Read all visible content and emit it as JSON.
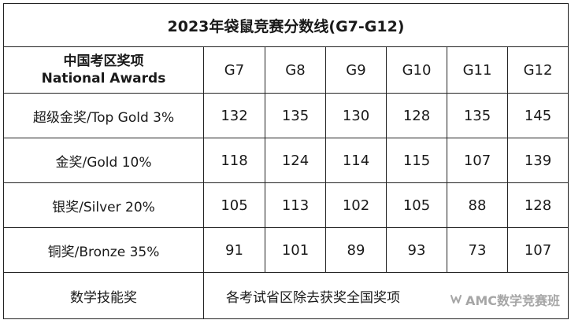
{
  "table": {
    "title": "2023年袋鼠竞赛分数线(G7-G12)",
    "header_label_line1": "中国考区奖项",
    "header_label_line2": "National Awards",
    "grades": [
      "G7",
      "G8",
      "G9",
      "G10",
      "G11",
      "G12"
    ],
    "rows": [
      {
        "award": "超级金奖/Top Gold 3%",
        "scores": [
          "132",
          "135",
          "130",
          "128",
          "135",
          "145"
        ]
      },
      {
        "award": "金奖/Gold 10%",
        "scores": [
          "118",
          "124",
          "114",
          "115",
          "107",
          "139"
        ]
      },
      {
        "award": "银奖/Silver 20%",
        "scores": [
          "105",
          "113",
          "102",
          "105",
          "88",
          "128"
        ]
      },
      {
        "award": "铜奖/Bronze 35%",
        "scores": [
          "91",
          "101",
          "89",
          "93",
          "73",
          "107"
        ]
      }
    ],
    "footer": {
      "award": "数学技能奖",
      "note": "各考试省区除去获奖全国奖项"
    }
  },
  "watermark": {
    "text": "AMC数学竞赛班",
    "icon": "wechat-channel-icon"
  }
}
